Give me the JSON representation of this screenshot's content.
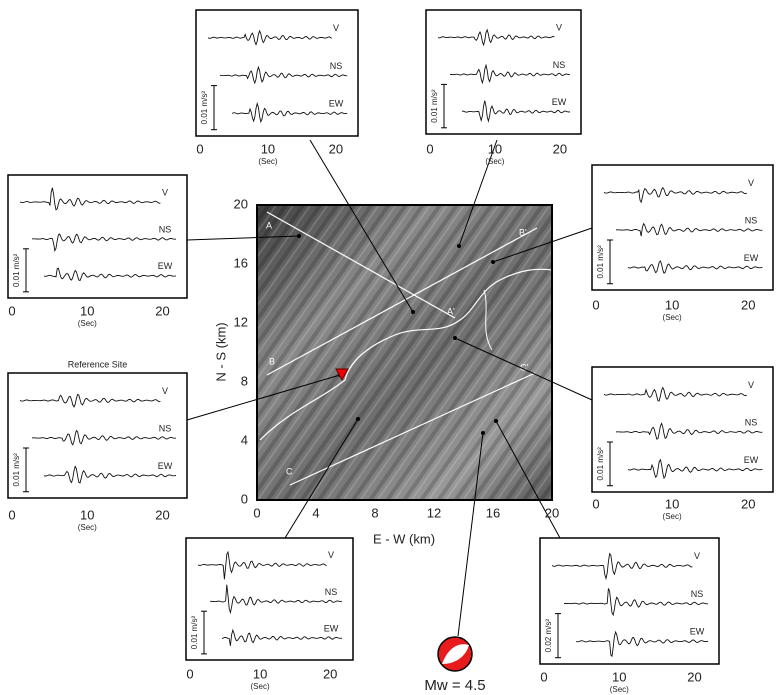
{
  "map": {
    "xlabel": "E - W (km)",
    "ylabel": "N - S (km)",
    "xlim": [
      0,
      20
    ],
    "ylim": [
      0,
      20
    ],
    "xticks": [
      0,
      4,
      8,
      12,
      16,
      20
    ],
    "yticks": [
      0,
      4,
      8,
      12,
      16,
      20
    ],
    "profiles": [
      {
        "start": "A",
        "end": "A'"
      },
      {
        "start": "B",
        "end": "B'"
      },
      {
        "start": "C",
        "end": "C'"
      }
    ],
    "magnitude": "Mw = 4.5"
  },
  "panels": [
    {
      "traces": [
        "V",
        "NS",
        "EW"
      ],
      "scale": "0.01 m/s²",
      "xticks": [
        0,
        10,
        20
      ],
      "xlabel": "(Sec)"
    },
    {
      "traces": [
        "V",
        "NS",
        "EW"
      ],
      "scale": "0.01 m/s²",
      "xticks": [
        0,
        10,
        20
      ],
      "xlabel": "(Sec)"
    },
    {
      "traces": [
        "V",
        "NS",
        "EW"
      ],
      "scale": "0.01 m/s²",
      "xticks": [
        0,
        10,
        20
      ],
      "xlabel": "(Sec)"
    },
    {
      "traces": [
        "V",
        "NS",
        "EW"
      ],
      "scale": "0.01 m/s²",
      "xticks": [
        0,
        10,
        20
      ],
      "xlabel": "(Sec)"
    },
    {
      "title": "Reference Site",
      "traces": [
        "V",
        "NS",
        "EW"
      ],
      "scale": "0.01 m/s²",
      "xticks": [
        0,
        10,
        20
      ],
      "xlabel": "(Sec)"
    },
    {
      "traces": [
        "V",
        "NS",
        "EW"
      ],
      "scale": "0.01 m/s²",
      "xticks": [
        0,
        10,
        20
      ],
      "xlabel": "(Sec)"
    },
    {
      "traces": [
        "V",
        "NS",
        "EW"
      ],
      "scale": "0.01 m/s²",
      "xticks": [
        0,
        10,
        20
      ],
      "xlabel": "(Sec)"
    },
    {
      "traces": [
        "V",
        "NS",
        "EW"
      ],
      "scale": "0.02 m/s²",
      "xticks": [
        0,
        10,
        20
      ],
      "xlabel": "(Sec)"
    }
  ]
}
